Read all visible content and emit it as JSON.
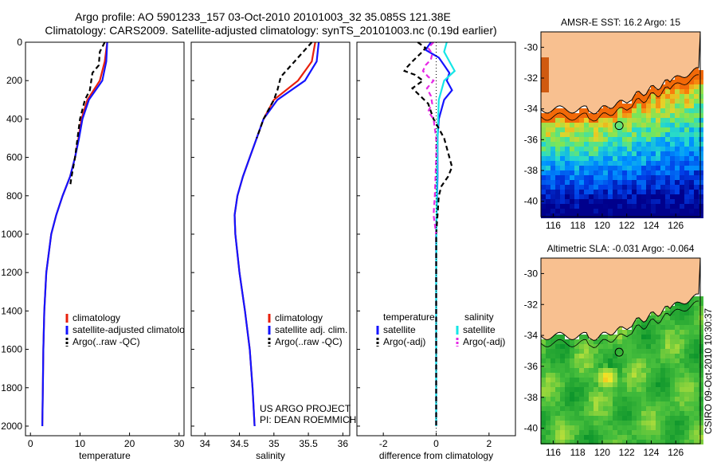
{
  "header": {
    "line1": "Argo profile: AO 5901233_157 03-Oct-2010 20101003_32 35.085S 121.38E",
    "line2": "Climatology: CARS2009. Satellite-adjusted climatology: synTS_20101003.nc (0.19d earlier)"
  },
  "colors": {
    "climatology": "#e8200c",
    "satellite": "#1414ff",
    "argo": "#000000",
    "sat_salinity": "#14e6e6",
    "argo_adj_salinity": "#e628e6",
    "land": "#f8c090"
  },
  "chart_data": [
    {
      "id": "temperature",
      "type": "line",
      "xlabel": "temperature",
      "xlim": [
        -1,
        31
      ],
      "xticks": [
        0,
        10,
        20,
        30
      ],
      "ylim": [
        2050,
        0
      ],
      "yticks": [
        0,
        200,
        400,
        600,
        800,
        1000,
        1200,
        1400,
        1600,
        1800,
        2000
      ],
      "series": [
        {
          "name": "climatology",
          "style": "solid",
          "color": "#e8200c",
          "depth": [
            0,
            100,
            200,
            300,
            400,
            500,
            600,
            700,
            800,
            900,
            1000,
            1200,
            1400,
            1600,
            1800,
            2000
          ],
          "values": [
            15.5,
            15.0,
            14.0,
            11.5,
            10.3,
            9.7,
            9.0,
            8.0,
            6.5,
            5.2,
            4.2,
            3.2,
            2.8,
            2.6,
            2.5,
            2.4
          ]
        },
        {
          "name": "satellite-adjusted climatology",
          "style": "solid",
          "color": "#1414ff",
          "depth": [
            0,
            100,
            200,
            300,
            400,
            500,
            600,
            700,
            800,
            900,
            1000,
            1200,
            1400,
            1600,
            1800,
            2000
          ],
          "values": [
            15.5,
            15.3,
            14.5,
            11.8,
            10.5,
            9.8,
            9.0,
            8.0,
            6.5,
            5.2,
            4.2,
            3.2,
            2.8,
            2.6,
            2.5,
            2.4
          ]
        },
        {
          "name": "Argo(..raw -QC)",
          "style": "dashed",
          "color": "#000000",
          "depth": [
            0,
            50,
            120,
            160,
            250,
            300,
            400,
            500,
            600,
            700,
            750
          ],
          "values": [
            15.0,
            14.0,
            13.8,
            12.5,
            12.0,
            11.0,
            10.0,
            9.5,
            9.0,
            8.3,
            8.0
          ]
        }
      ],
      "legend": [
        "climatology",
        "satellite-adjusted climatology",
        "Argo(..raw -QC)"
      ]
    },
    {
      "id": "salinity",
      "type": "line",
      "xlabel": "salinity",
      "xticks": [
        34,
        34.5,
        35,
        35.5,
        36
      ],
      "xlim": [
        33.8,
        36.1
      ],
      "ylim": [
        2050,
        0
      ],
      "series": [
        {
          "name": "climatology",
          "style": "solid",
          "color": "#e8200c",
          "depth": [
            0,
            100,
            200,
            300,
            400,
            500,
            600,
            700,
            800,
            900,
            1000,
            1200,
            1400,
            1600,
            1800,
            2000
          ],
          "values": [
            35.6,
            35.55,
            35.35,
            35.0,
            34.85,
            34.75,
            34.65,
            34.55,
            34.47,
            34.43,
            34.44,
            34.5,
            34.58,
            34.65,
            34.69,
            34.72
          ]
        },
        {
          "name": "satellite adj. clim.",
          "style": "solid",
          "color": "#1414ff",
          "depth": [
            0,
            100,
            200,
            300,
            400,
            500,
            600,
            700,
            800,
            900,
            1000,
            1200,
            1400,
            1600,
            1800,
            2000
          ],
          "values": [
            35.65,
            35.62,
            35.45,
            35.05,
            34.85,
            34.75,
            34.65,
            34.55,
            34.47,
            34.43,
            34.44,
            34.5,
            34.58,
            34.65,
            34.69,
            34.72
          ]
        },
        {
          "name": "Argo(..raw -QC)",
          "style": "dashed",
          "color": "#000000",
          "depth": [
            0,
            100,
            180,
            250,
            300,
            400,
            500
          ],
          "values": [
            35.55,
            35.3,
            35.1,
            35.05,
            35.0,
            34.85,
            34.75
          ]
        }
      ],
      "legend": [
        "climatology",
        "satellite adj. clim.",
        "Argo(..raw -QC)"
      ],
      "annotation": [
        "US ARGO PROJECT",
        "PI: DEAN ROEMMICH"
      ]
    },
    {
      "id": "difference",
      "type": "line",
      "xlabel": "difference from climatology",
      "xticks": [
        -2,
        0,
        2
      ],
      "xlim": [
        -3,
        3
      ],
      "ylim": [
        2050,
        0
      ],
      "series": [
        {
          "name": "temperature satellite",
          "style": "solid",
          "color": "#1414ff",
          "depth": [
            0,
            40,
            80,
            120,
            160,
            200,
            250,
            300,
            400,
            500,
            700,
            1000,
            1500,
            2000
          ],
          "values": [
            -0.2,
            -0.4,
            0.1,
            0.3,
            0.5,
            0.4,
            0.6,
            0.3,
            0.1,
            0.05,
            0.05,
            0.0,
            0.0,
            0.0
          ]
        },
        {
          "name": "salinity satellite",
          "style": "solid",
          "color": "#14e6e6",
          "depth": [
            0,
            50,
            100,
            150,
            200,
            300,
            500,
            800,
            1200,
            1600,
            2000
          ],
          "values": [
            0.4,
            0.3,
            0.5,
            0.7,
            0.3,
            0.1,
            0.05,
            0.02,
            0.0,
            0.0,
            0.0
          ]
        },
        {
          "name": "temperature Argo(-adj)",
          "style": "dashed",
          "color": "#000000",
          "depth": [
            0,
            30,
            60,
            100,
            130,
            150,
            170,
            200,
            240,
            280,
            320,
            400,
            500,
            600,
            650,
            700,
            750,
            800,
            900,
            1000,
            1200,
            1500,
            2000
          ],
          "values": [
            -0.7,
            -0.4,
            -0.6,
            -0.9,
            -1.1,
            -1.2,
            -0.8,
            -0.5,
            -0.9,
            -0.6,
            -0.3,
            -0.1,
            0.3,
            0.5,
            0.6,
            0.45,
            0.2,
            0.1,
            0.05,
            0.0,
            0.0,
            0.0,
            0.0
          ]
        },
        {
          "name": "salinity Argo(-adj)",
          "style": "dashed",
          "color": "#e628e6",
          "depth": [
            0,
            30,
            60,
            90,
            120,
            150,
            180,
            200,
            240,
            280,
            320,
            360,
            400,
            450,
            500,
            600,
            800,
            900,
            1000
          ],
          "values": [
            -0.1,
            -0.3,
            -0.15,
            -0.2,
            -0.4,
            -0.5,
            -0.3,
            -0.1,
            -0.35,
            -0.2,
            -0.15,
            -0.3,
            -0.1,
            -0.05,
            0.0,
            0.0,
            -0.05,
            -0.1,
            0.0
          ]
        }
      ],
      "legend_headers": [
        "temperature",
        "salinity"
      ],
      "legend": [
        "satellite",
        "Argo(-adj)",
        "satellite",
        "Argo(-adj)"
      ]
    },
    {
      "id": "sst-map",
      "type": "heatmap",
      "title": "AMSR-E SST: 16.2 Argo: 15",
      "xticks": [
        116,
        118,
        120,
        122,
        124,
        126
      ],
      "yticks": [
        -30,
        -32,
        -34,
        -36,
        -38,
        -40
      ],
      "xlim": [
        115,
        128
      ],
      "ylim": [
        -41,
        -29
      ],
      "marker": {
        "lon": 121.38,
        "lat": -35.085
      }
    },
    {
      "id": "sla-map",
      "type": "heatmap",
      "title": "Altimetric SLA: -0.031 Argo: -0.064",
      "xticks": [
        116,
        118,
        120,
        122,
        124,
        126
      ],
      "yticks": [
        -30,
        -32,
        -34,
        -36,
        -38,
        -40
      ],
      "xlim": [
        115,
        128
      ],
      "ylim": [
        -41,
        -29
      ],
      "marker": {
        "lon": 121.38,
        "lat": -35.085
      }
    }
  ],
  "footer": {
    "vertical_stamp": "CSIRO 09-Oct-2010 10:30:37"
  }
}
